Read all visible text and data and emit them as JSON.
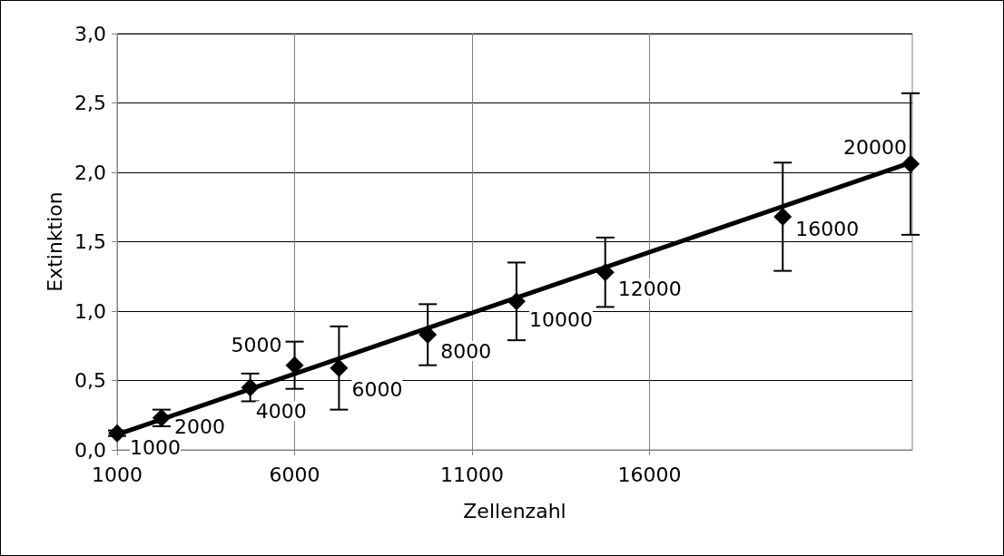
{
  "chart_data": {
    "type": "scatter",
    "xlabel": "Zellenzahl",
    "ylabel": "Extinktion",
    "xlim": [
      1000,
      23400
    ],
    "xticks": [
      1000,
      6000,
      11000,
      16000
    ],
    "ylim": [
      0,
      3
    ],
    "yticks": [
      {
        "value": 0,
        "label": "0,0"
      },
      {
        "value": 0.5,
        "label": "0,5"
      },
      {
        "value": 1,
        "label": "1,0"
      },
      {
        "value": 1.5,
        "label": "1,5"
      },
      {
        "value": 2,
        "label": "2,0"
      },
      {
        "value": 2.5,
        "label": "2,5"
      },
      {
        "value": 3,
        "label": "3,0"
      }
    ],
    "grid": true,
    "marker": "diamond",
    "series": [
      {
        "color": "#000000",
        "x": [
          1000,
          2250,
          4750,
          6000,
          7250,
          9750,
          12250,
          14750,
          19750,
          23350
        ],
        "values": [
          0.12,
          0.23,
          0.45,
          0.61,
          0.59,
          0.83,
          1.07,
          1.28,
          1.68,
          2.06
        ],
        "errors": [
          0.02,
          0.06,
          0.1,
          0.17,
          0.3,
          0.22,
          0.28,
          0.25,
          0.39,
          0.51
        ]
      },
      {
        "type": "line",
        "color": "#000000",
        "x": [
          1000,
          23350
        ],
        "values": [
          0.11,
          2.07
        ],
        "marker": "none",
        "line_style": "solid"
      }
    ],
    "annotations": [
      {
        "text": "1000",
        "x": 1000,
        "y": 0.12
      },
      {
        "text": "2000",
        "x": 2250,
        "y": 0.23
      },
      {
        "text": "4000",
        "x": 4750,
        "y": 0.45
      },
      {
        "text": "5000",
        "x": 6000,
        "y": 0.61
      },
      {
        "text": "6000",
        "x": 7250,
        "y": 0.59
      },
      {
        "text": "8000",
        "x": 9750,
        "y": 0.83
      },
      {
        "text": "10000",
        "x": 12250,
        "y": 1.07
      },
      {
        "text": "12000",
        "x": 14750,
        "y": 1.28
      },
      {
        "text": "16000",
        "x": 19750,
        "y": 1.68
      },
      {
        "text": "20000",
        "x": 23350,
        "y": 2.06
      }
    ]
  }
}
